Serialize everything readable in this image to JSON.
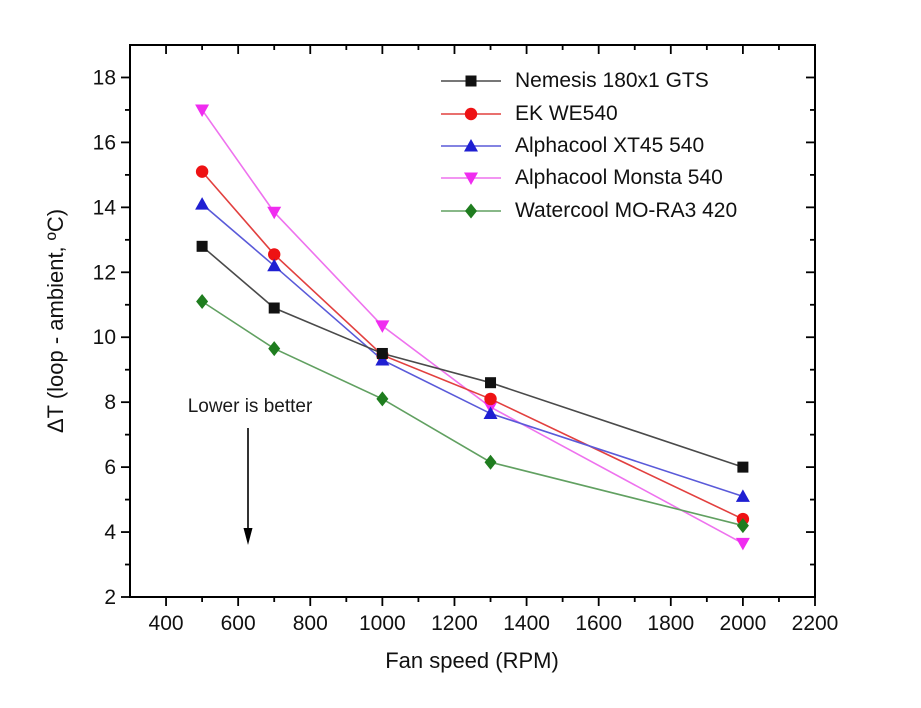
{
  "page": {
    "background_color": "#ffffff",
    "text_color": "#111111"
  },
  "chart_data": {
    "type": "line",
    "title": "",
    "xlabel": "Fan speed (RPM)",
    "ylabel": "ΔT (loop - ambient, ºC)",
    "xlim": [
      300,
      2200
    ],
    "ylim": [
      2,
      19
    ],
    "xticks": [
      400,
      600,
      800,
      1000,
      1200,
      1400,
      1600,
      1800,
      2000,
      2200
    ],
    "xticks_minor": [
      500,
      700,
      900,
      1100,
      1300,
      1500,
      1700,
      1900,
      2100
    ],
    "yticks": [
      2,
      4,
      6,
      8,
      10,
      12,
      14,
      16,
      18
    ],
    "yticks_minor": [
      3,
      5,
      7,
      9,
      11,
      13,
      15,
      17
    ],
    "grid": false,
    "legend_position": "top-right-inside",
    "x": [
      500,
      700,
      1000,
      1300,
      2000
    ],
    "series": [
      {
        "name": "Nemesis 180x1 GTS",
        "marker": "square",
        "marker_color": "#111111",
        "line_color": "#4a4a4a",
        "values": [
          12.8,
          10.9,
          9.5,
          8.6,
          6.0
        ]
      },
      {
        "name": "EK WE540",
        "marker": "circle",
        "marker_color": "#ee1214",
        "line_color": "#e2403f",
        "values": [
          15.1,
          12.55,
          9.45,
          8.1,
          4.4
        ]
      },
      {
        "name": "Alphacool XT45 540",
        "marker": "triangle-up",
        "marker_color": "#1f1fd2",
        "line_color": "#5a5ad9",
        "values": [
          14.1,
          12.2,
          9.3,
          7.65,
          5.1
        ]
      },
      {
        "name": "Alphacool Monsta 540",
        "marker": "triangle-down",
        "marker_color": "#f02cf0",
        "line_color": "#ee72ee",
        "values": [
          17.0,
          13.85,
          10.35,
          7.85,
          3.65
        ]
      },
      {
        "name": "Watercool MO-RA3 420",
        "marker": "diamond",
        "marker_color": "#1f7d1f",
        "line_color": "#61a061",
        "values": [
          11.1,
          9.65,
          8.1,
          6.15,
          4.2
        ]
      }
    ],
    "draw_order": [
      3,
      1,
      4,
      2,
      0
    ],
    "annotation": {
      "text": "Lower is better",
      "arrow": "down"
    }
  }
}
